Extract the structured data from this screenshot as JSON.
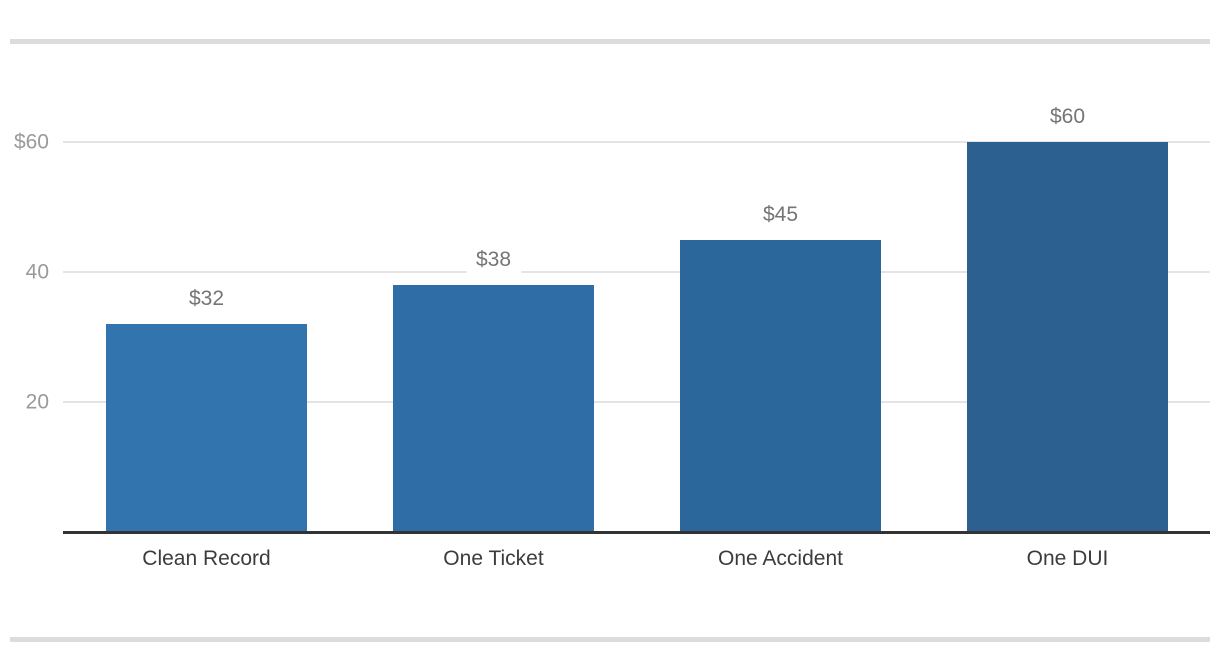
{
  "chart_data": {
    "type": "bar",
    "title": "",
    "xlabel": "",
    "ylabel": "",
    "categories": [
      "Clean Record",
      "One Ticket",
      "One Accident",
      "One DUI"
    ],
    "values": [
      32,
      38,
      45,
      60
    ],
    "value_labels": [
      "$32",
      "$38",
      "$45",
      "$60"
    ],
    "bar_colors": [
      "#3274ae",
      "#2e6da6",
      "#2c679c",
      "#2b6090"
    ],
    "yticks": [
      {
        "label": "$60",
        "value": 60
      },
      {
        "label": "40",
        "value": 40
      },
      {
        "label": "20",
        "value": 20
      }
    ],
    "ylim": [
      0,
      60
    ],
    "grid": true,
    "legend": false,
    "colors": {
      "gridline": "#e4e4e4",
      "axis_line": "#333333",
      "tick_label": "#9a9a9a",
      "value_label": "#757575",
      "category_label": "#3c3c3c",
      "divider": "#dcdcdc",
      "background": "#ffffff"
    }
  }
}
